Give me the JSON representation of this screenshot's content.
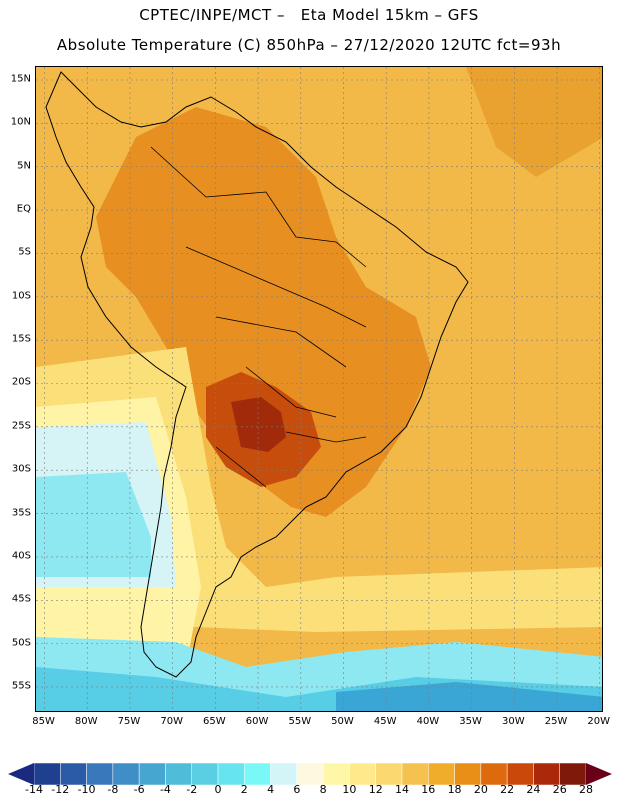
{
  "header": {
    "line1": "CPTEC/INPE/MCT –   Eta Model 15km – GFS",
    "line2": "Absolute Temperature (C) 850hPa – 27/12/2020 12UTC fct=93h"
  },
  "map": {
    "lat_labels": [
      "15N",
      "10N",
      "5N",
      "EQ",
      "5S",
      "10S",
      "15S",
      "20S",
      "25S",
      "30S",
      "35S",
      "40S",
      "45S",
      "50S",
      "55S"
    ],
    "lat_values": [
      15,
      10,
      5,
      0,
      -5,
      -10,
      -15,
      -20,
      -25,
      -30,
      -35,
      -40,
      -45,
      -50,
      -55
    ],
    "lon_labels": [
      "85W",
      "80W",
      "75W",
      "70W",
      "65W",
      "60W",
      "55W",
      "50W",
      "45W",
      "40W",
      "35W",
      "30W",
      "25W",
      "20W"
    ],
    "lon_values": [
      -85,
      -80,
      -75,
      -70,
      -65,
      -60,
      -55,
      -50,
      -45,
      -40,
      -35,
      -30,
      -25,
      -20
    ],
    "lat_range": [
      -58,
      16.5
    ],
    "lon_range": [
      -86,
      -19.5
    ]
  },
  "colorbar": {
    "labels": [
      "-14",
      "-12",
      "-10",
      "-8",
      "-6",
      "-4",
      "-2",
      "0",
      "2",
      "4",
      "6",
      "8",
      "10",
      "12",
      "14",
      "16",
      "18",
      "20",
      "22",
      "24",
      "26",
      "28"
    ],
    "colors": [
      "#1f3f8f",
      "#2b5aa6",
      "#3a78bc",
      "#3f8ec6",
      "#46a6d0",
      "#4fbcd9",
      "#5acfe3",
      "#66e4ef",
      "#7af7f7",
      "#d4f5f7",
      "#fff8e0",
      "#fff7a8",
      "#ffe98a",
      "#fbd870",
      "#f5c24f",
      "#efad2a",
      "#e98f18",
      "#de6a0e",
      "#c9480a",
      "#a9290a",
      "#7f1a0a"
    ],
    "low_arrow_color": "#1a2a80",
    "high_arrow_color": "#6a0018"
  },
  "field_colors": {
    "ocean_warm": "#f2b948",
    "continent_hot": "#e88f22",
    "core_hot": "#c64d0c",
    "core_very_hot": "#a12a0a",
    "mild": "#fbe07a",
    "cool": "#fff3a6",
    "cold_a": "#d6f4f6",
    "cold_b": "#8ee8f2",
    "cold_c": "#57cde6",
    "coldest": "#3aa6d6"
  }
}
